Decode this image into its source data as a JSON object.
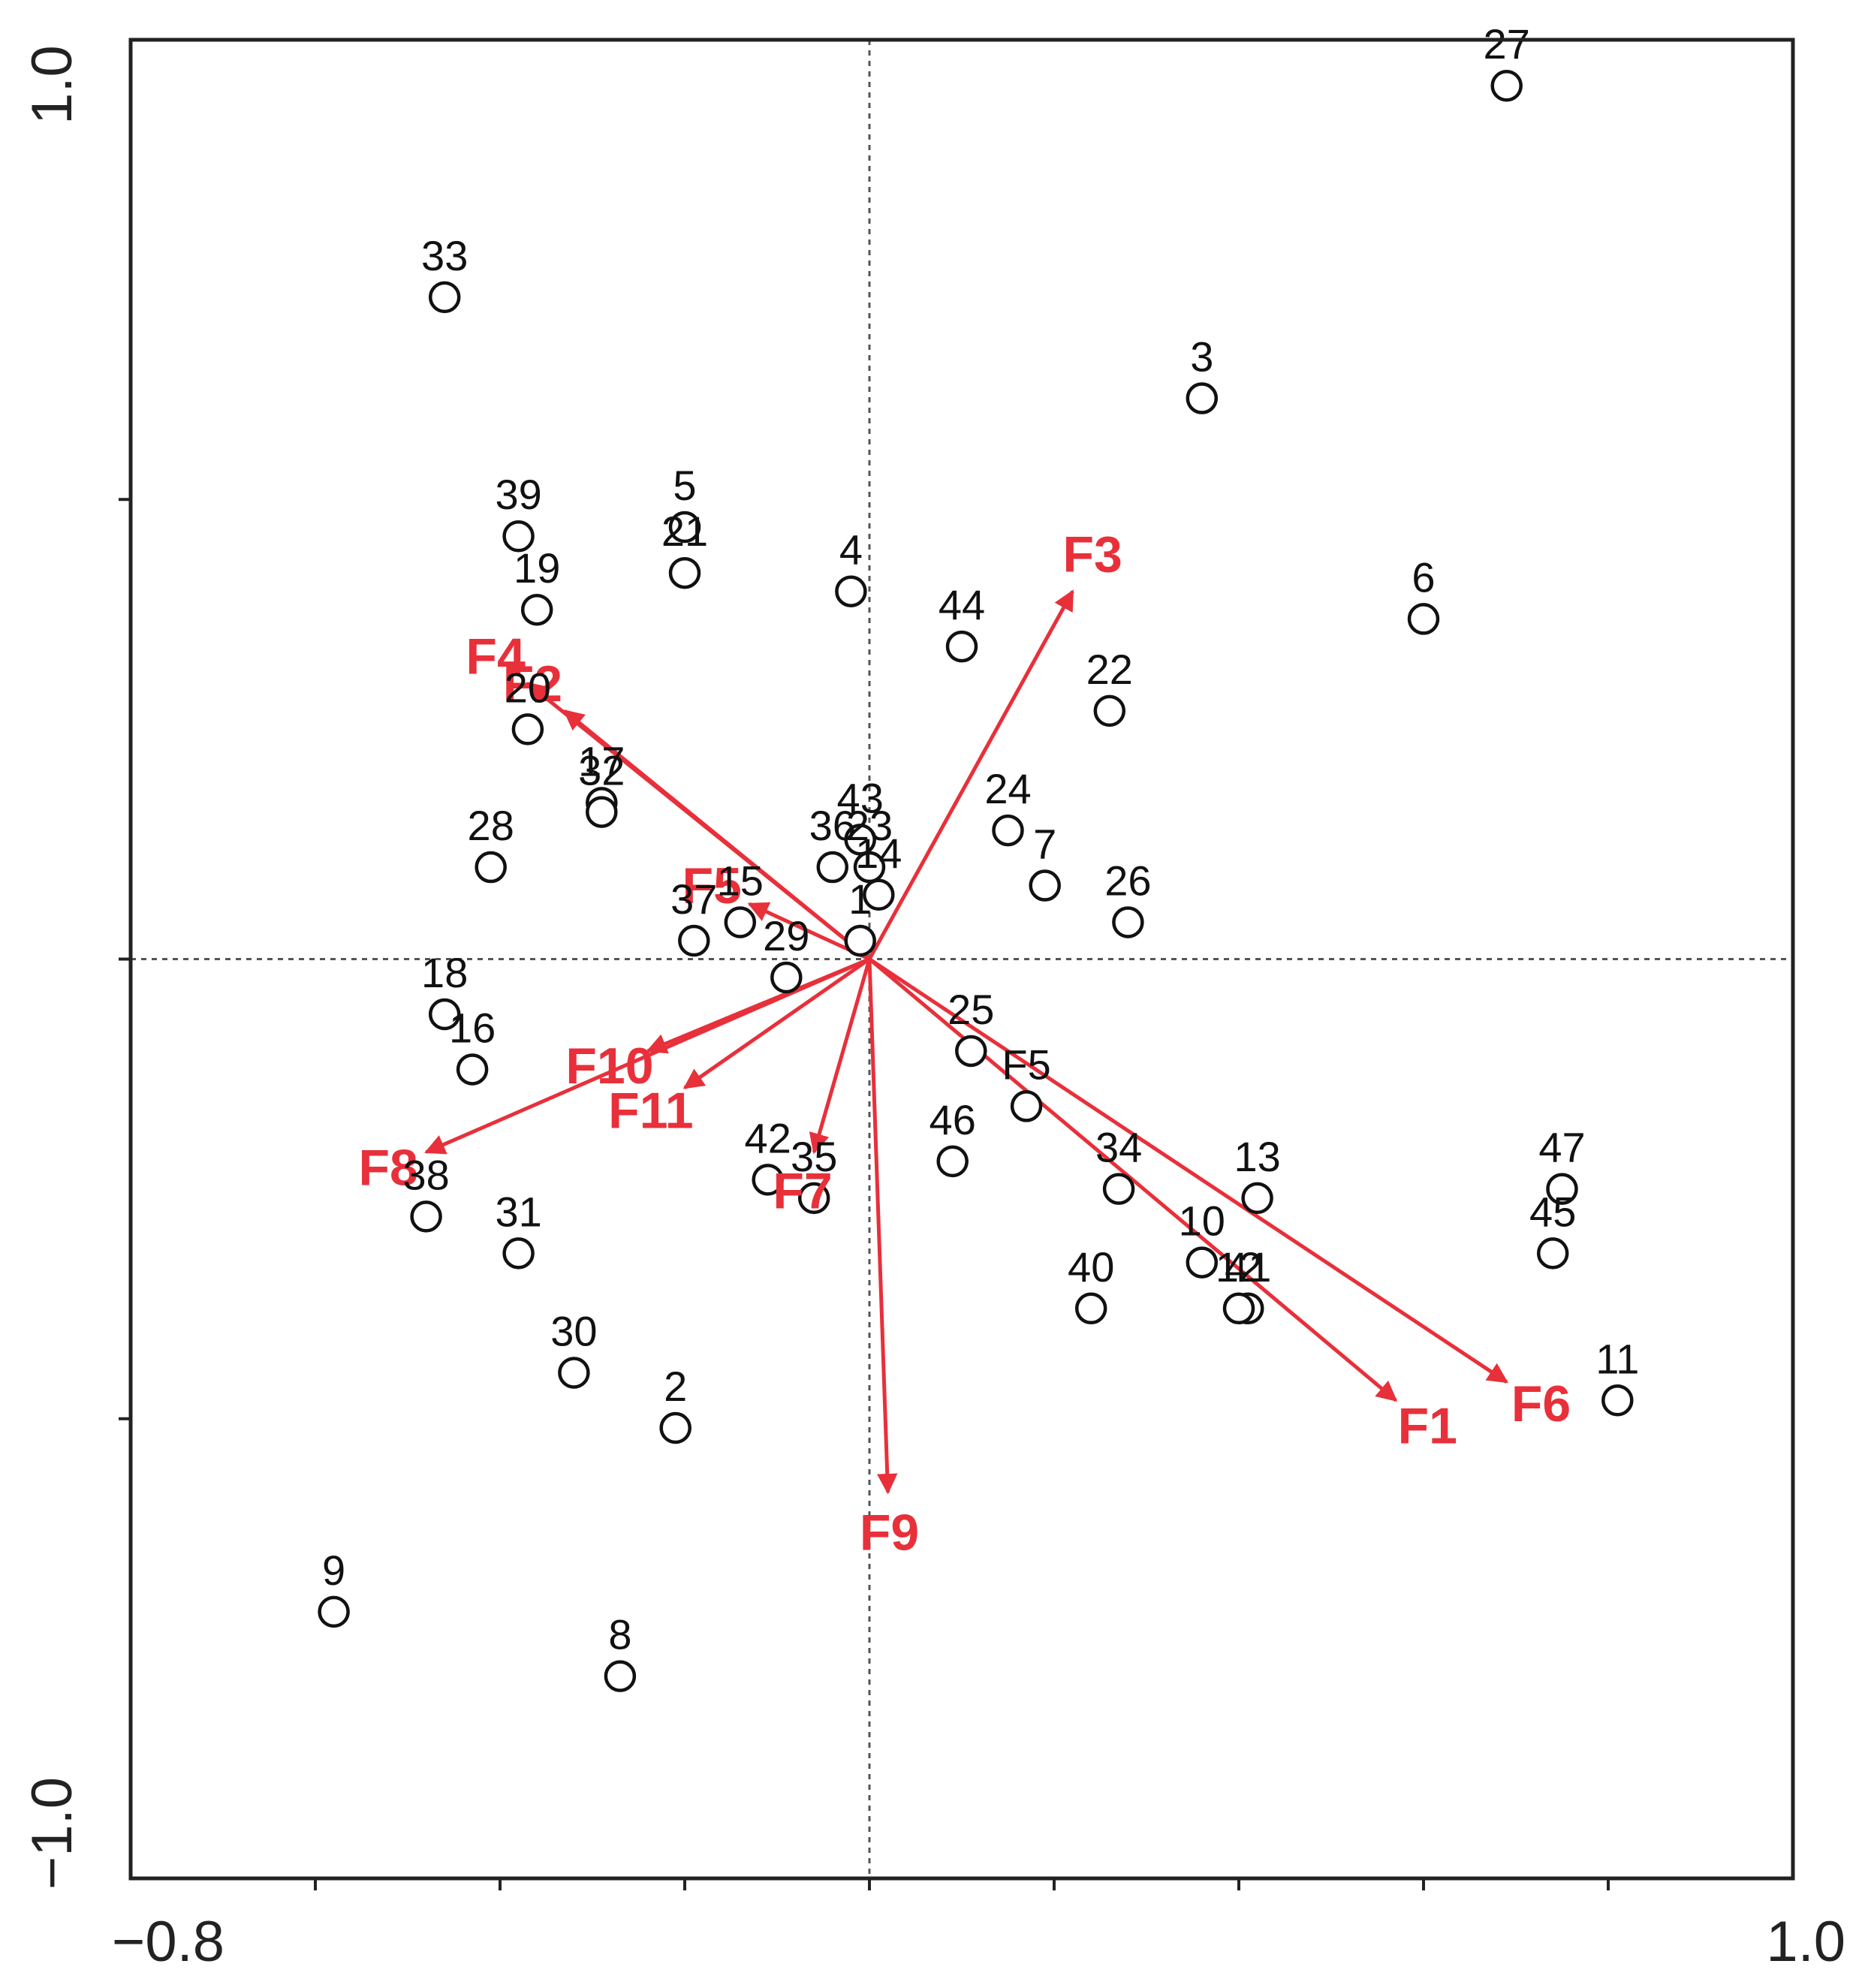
{
  "chart_data": {
    "type": "scatter",
    "title": "",
    "xlabel": "",
    "ylabel": "",
    "xlim": [
      -0.8,
      1.0
    ],
    "ylim": [
      -1.0,
      1.0
    ],
    "x_tick_labels": [
      {
        "value": -0.8,
        "label": "−0.8"
      },
      {
        "value": 1.0,
        "label": "1.0"
      }
    ],
    "y_tick_labels": [
      {
        "value": 1.0,
        "label": "1.0"
      },
      {
        "value": -1.0,
        "label": "−1.0"
      }
    ],
    "x_minor_ticks": [
      -0.6,
      -0.4,
      -0.2,
      0.0,
      0.2,
      0.4,
      0.6,
      0.8
    ],
    "y_minor_ticks": [
      0.5,
      0.0,
      -0.5
    ],
    "zero_lines": true,
    "point_color": "#111111",
    "vector_color": "#e8303a",
    "points": [
      {
        "label": "27",
        "x": 0.69,
        "y": 0.95
      },
      {
        "label": "33",
        "x": -0.46,
        "y": 0.72
      },
      {
        "label": "3",
        "x": 0.36,
        "y": 0.61
      },
      {
        "label": "39",
        "x": -0.38,
        "y": 0.46
      },
      {
        "label": "5",
        "x": -0.2,
        "y": 0.47
      },
      {
        "label": "21",
        "x": -0.2,
        "y": 0.42
      },
      {
        "label": "19",
        "x": -0.36,
        "y": 0.38
      },
      {
        "label": "4",
        "x": -0.02,
        "y": 0.4
      },
      {
        "label": "44",
        "x": 0.1,
        "y": 0.34
      },
      {
        "label": "6",
        "x": 0.6,
        "y": 0.37
      },
      {
        "label": "22",
        "x": 0.26,
        "y": 0.27
      },
      {
        "label": "20",
        "x": -0.37,
        "y": 0.25
      },
      {
        "label": "17",
        "x": -0.29,
        "y": 0.17
      },
      {
        "label": "32",
        "x": -0.29,
        "y": 0.16
      },
      {
        "label": "28",
        "x": -0.41,
        "y": 0.1
      },
      {
        "label": "24",
        "x": 0.15,
        "y": 0.14
      },
      {
        "label": "7",
        "x": 0.19,
        "y": 0.08
      },
      {
        "label": "26",
        "x": 0.28,
        "y": 0.04
      },
      {
        "label": "43",
        "x": -0.01,
        "y": 0.13
      },
      {
        "label": "36",
        "x": -0.04,
        "y": 0.1
      },
      {
        "label": "23",
        "x": 0.0,
        "y": 0.1
      },
      {
        "label": "14",
        "x": 0.01,
        "y": 0.07
      },
      {
        "label": "1",
        "x": -0.01,
        "y": 0.02
      },
      {
        "label": "15",
        "x": -0.14,
        "y": 0.04
      },
      {
        "label": "37",
        "x": -0.19,
        "y": 0.02
      },
      {
        "label": "29",
        "x": -0.09,
        "y": -0.02
      },
      {
        "label": "18",
        "x": -0.46,
        "y": -0.06
      },
      {
        "label": "16",
        "x": -0.43,
        "y": -0.12
      },
      {
        "label": "25",
        "x": 0.11,
        "y": -0.1
      },
      {
        "label": "F5",
        "x": 0.17,
        "y": -0.16
      },
      {
        "label": "34",
        "x": 0.27,
        "y": -0.25
      },
      {
        "label": "13",
        "x": 0.42,
        "y": -0.26
      },
      {
        "label": "10",
        "x": 0.36,
        "y": -0.33
      },
      {
        "label": "41",
        "x": 0.41,
        "y": -0.38
      },
      {
        "label": "12",
        "x": 0.4,
        "y": -0.38
      },
      {
        "label": "40",
        "x": 0.24,
        "y": -0.38
      },
      {
        "label": "46",
        "x": 0.09,
        "y": -0.22
      },
      {
        "label": "42",
        "x": -0.11,
        "y": -0.24
      },
      {
        "label": "35",
        "x": -0.06,
        "y": -0.26
      },
      {
        "label": "38",
        "x": -0.48,
        "y": -0.28
      },
      {
        "label": "31",
        "x": -0.38,
        "y": -0.32
      },
      {
        "label": "30",
        "x": -0.32,
        "y": -0.45
      },
      {
        "label": "2",
        "x": -0.21,
        "y": -0.51
      },
      {
        "label": "47",
        "x": 0.75,
        "y": -0.25
      },
      {
        "label": "45",
        "x": 0.74,
        "y": -0.32
      },
      {
        "label": "11",
        "x": 0.81,
        "y": -0.48
      },
      {
        "label": "9",
        "x": -0.58,
        "y": -0.71
      },
      {
        "label": "8",
        "x": -0.27,
        "y": -0.78
      }
    ],
    "vectors": [
      {
        "label": "F1",
        "x": 0.57,
        "y": -0.48
      },
      {
        "label": "F2",
        "x": -0.33,
        "y": 0.27
      },
      {
        "label": "F3",
        "x": 0.22,
        "y": 0.4
      },
      {
        "label": "F4",
        "x": -0.37,
        "y": 0.3
      },
      {
        "label": "F5",
        "x": -0.13,
        "y": 0.06
      },
      {
        "label": "F6",
        "x": 0.69,
        "y": -0.46
      },
      {
        "label": "F7",
        "x": -0.06,
        "y": -0.21
      },
      {
        "label": "F8",
        "x": -0.48,
        "y": -0.21
      },
      {
        "label": "F9",
        "x": 0.02,
        "y": -0.58
      },
      {
        "label": "F10",
        "x": -0.24,
        "y": -0.1
      },
      {
        "label": "F11",
        "x": -0.2,
        "y": -0.14
      }
    ]
  }
}
